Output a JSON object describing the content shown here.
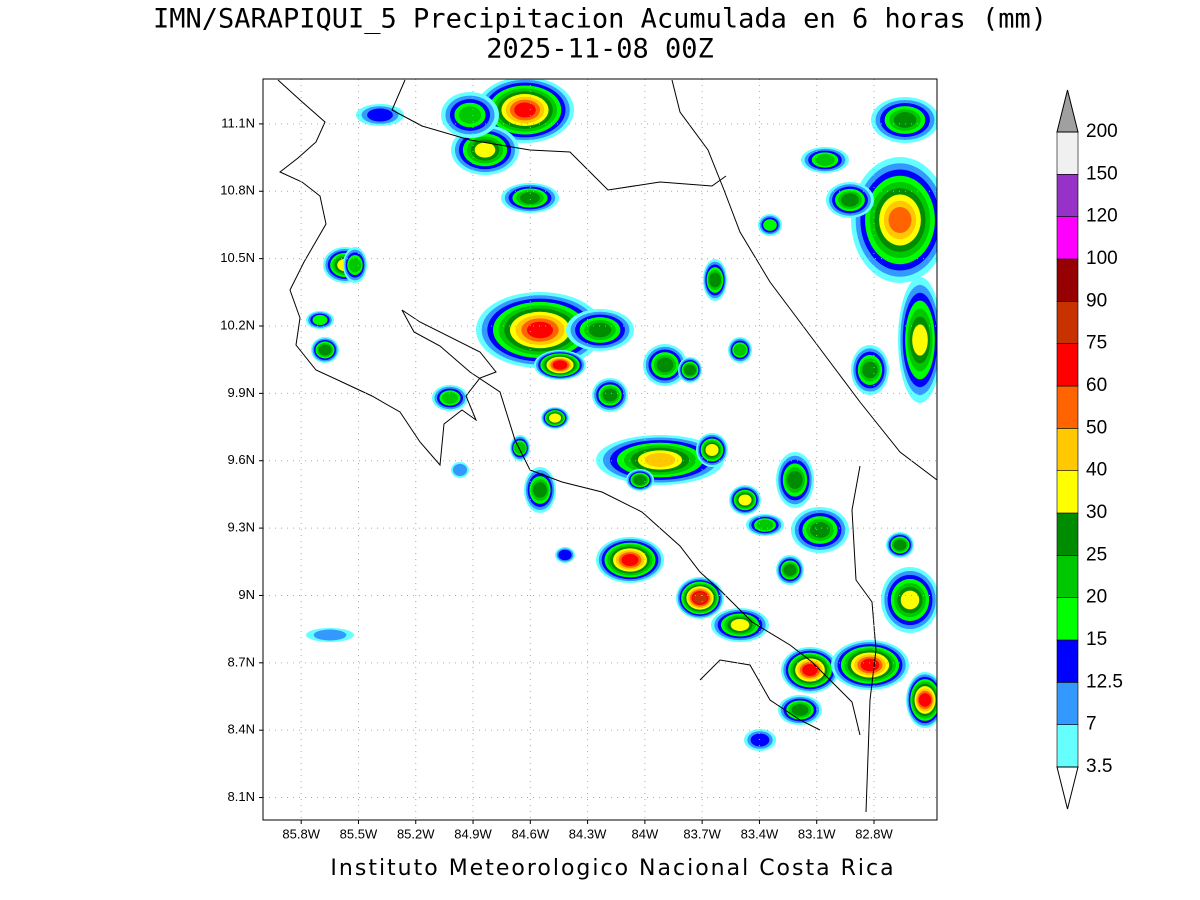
{
  "title": "IMN/SARAPIQUI_5 Precipitacion Acumulada en 6 horas (mm)",
  "subtitle": "2025-11-08 00Z",
  "map": {
    "xlim": [
      -86.0,
      -82.47
    ],
    "ylim": [
      8.0,
      11.3
    ],
    "grid": true,
    "xticks": [
      {
        "value": -85.8,
        "label": "85.8W"
      },
      {
        "value": -85.5,
        "label": "85.5W"
      },
      {
        "value": -85.2,
        "label": "85.2W"
      },
      {
        "value": -84.9,
        "label": "84.9W"
      },
      {
        "value": -84.6,
        "label": "84.6W"
      },
      {
        "value": -84.3,
        "label": "84.3W"
      },
      {
        "value": -84.0,
        "label": "84W"
      },
      {
        "value": -83.7,
        "label": "83.7W"
      },
      {
        "value": -83.4,
        "label": "83.4W"
      },
      {
        "value": -83.1,
        "label": "83.1W"
      },
      {
        "value": -82.8,
        "label": "82.8W"
      }
    ],
    "yticks": [
      {
        "value": 8.1,
        "label": "8.1N"
      },
      {
        "value": 8.4,
        "label": "8.4N"
      },
      {
        "value": 8.7,
        "label": "8.7N"
      },
      {
        "value": 9.0,
        "label": "9N"
      },
      {
        "value": 9.3,
        "label": "9.3N"
      },
      {
        "value": 9.6,
        "label": "9.6N"
      },
      {
        "value": 9.9,
        "label": "9.9N"
      },
      {
        "value": 10.2,
        "label": "10.2N"
      },
      {
        "value": 10.5,
        "label": "10.5N"
      },
      {
        "value": 10.8,
        "label": "10.8N"
      },
      {
        "value": 11.1,
        "label": "11.1N"
      }
    ]
  },
  "colorbar": {
    "levels": [
      3.5,
      7,
      12.5,
      15,
      20,
      25,
      30,
      40,
      50,
      60,
      75,
      90,
      100,
      120,
      150,
      200
    ],
    "under_color": "#ffffff",
    "over_color": "#a0a0a0",
    "colors": [
      "#66ffff",
      "#3399ff",
      "#0000ff",
      "#00ff00",
      "#00c800",
      "#008c00",
      "#ffff00",
      "#ffc800",
      "#ff6400",
      "#ff0000",
      "#c83200",
      "#960000",
      "#ff00ff",
      "#9632c8",
      "#f0f0f0"
    ]
  },
  "footer": "Instituto Meteorologico Nacional Costa Rica"
}
